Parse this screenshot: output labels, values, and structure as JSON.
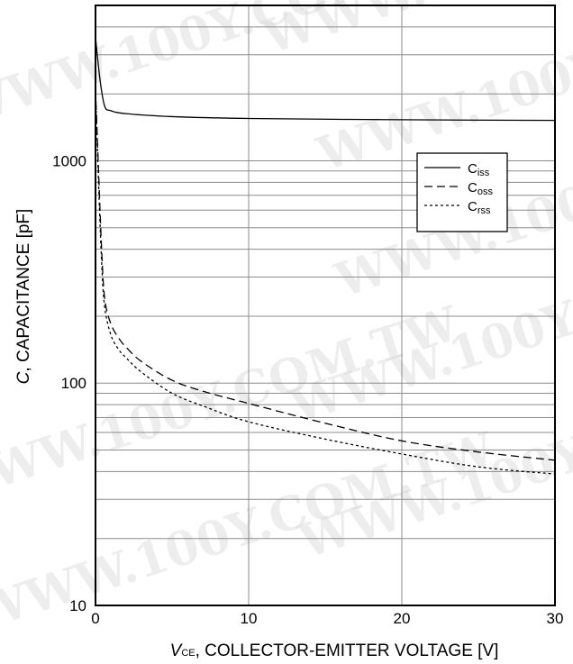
{
  "watermark": "WWW.100Y.COM.TW",
  "chart_data": {
    "type": "line",
    "title": "",
    "xlabel": {
      "var": "V",
      "sub": "CE",
      "rest": ", COLLECTOR-EMITTER VOLTAGE [V]"
    },
    "ylabel": {
      "var": "C",
      "rest": ", CAPACITANCE [pF]"
    },
    "xlim": [
      0,
      30
    ],
    "ylim": [
      10,
      5000
    ],
    "yscale": "log",
    "grid": true,
    "legend_position": "right",
    "x_ticks": [
      "0",
      "10",
      "20",
      "30"
    ],
    "y_ticks": [
      "10",
      "100",
      "1000"
    ],
    "series": [
      {
        "name": "C",
        "sub": "iss",
        "dash": "solid",
        "x": [
          0,
          0.3,
          0.6,
          1,
          2,
          5,
          10,
          20,
          30
        ],
        "y": [
          3600,
          2300,
          1760,
          1680,
          1630,
          1580,
          1550,
          1530,
          1520
        ]
      },
      {
        "name": "C",
        "sub": "oss",
        "dash": "dashed",
        "x": [
          0,
          0.2,
          0.4,
          0.6,
          1,
          1.5,
          2,
          3,
          5,
          7,
          10,
          15,
          20,
          25,
          30
        ],
        "y": [
          2100,
          900,
          400,
          240,
          185,
          160,
          145,
          125,
          103,
          92,
          81,
          66,
          55,
          49,
          45
        ]
      },
      {
        "name": "C",
        "sub": "rss",
        "dash": "dotted",
        "x": [
          0,
          0.2,
          0.4,
          0.6,
          1,
          1.5,
          2,
          3,
          5,
          7,
          10,
          15,
          20,
          25,
          30
        ],
        "y": [
          2100,
          800,
          350,
          220,
          165,
          142,
          130,
          112,
          90,
          79,
          67,
          56,
          48,
          42,
          39
        ]
      }
    ]
  }
}
